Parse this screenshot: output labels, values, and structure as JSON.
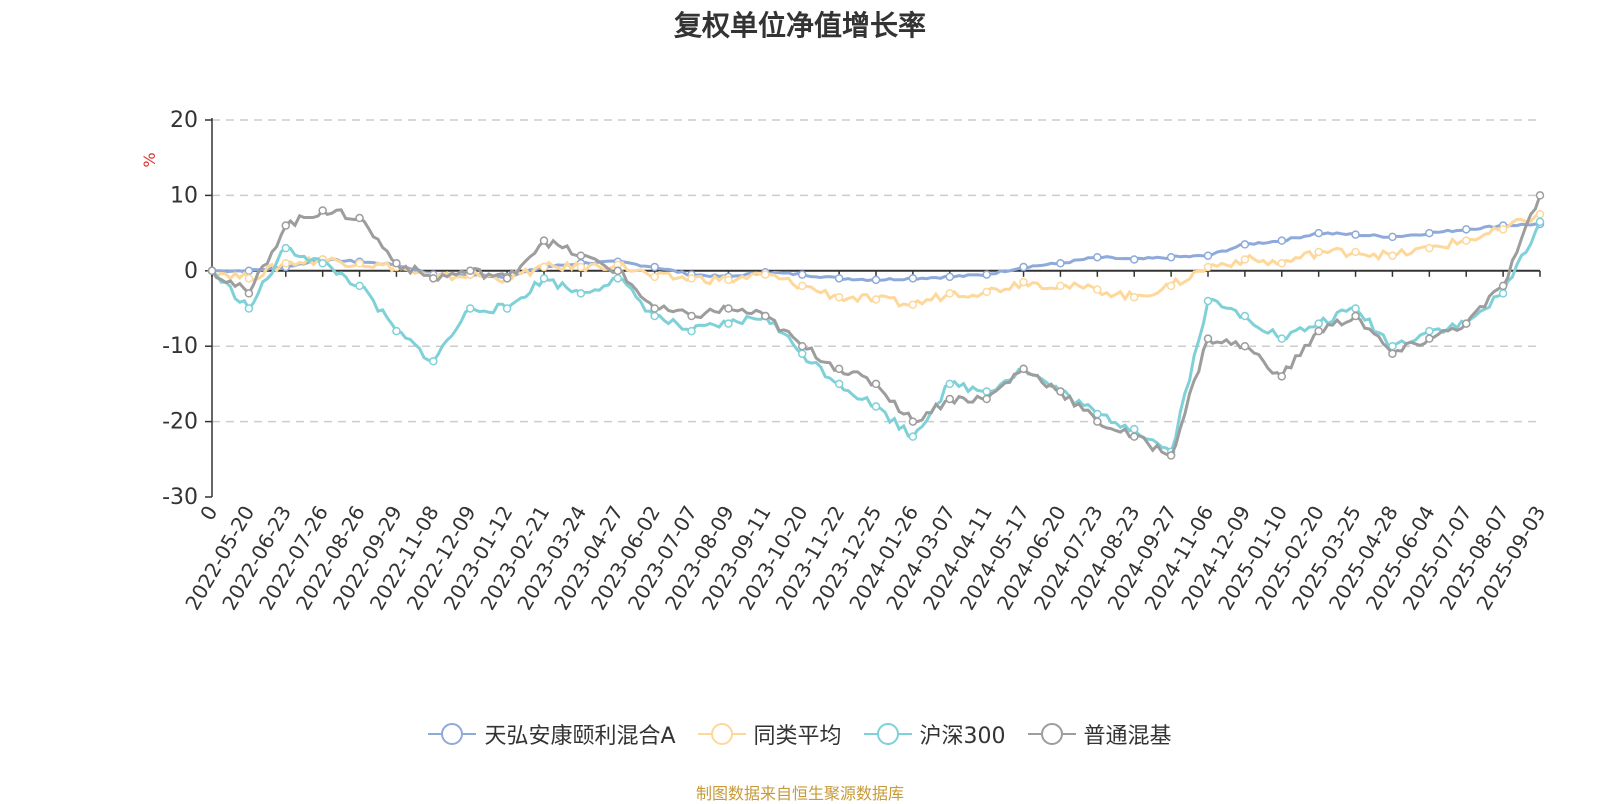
{
  "page": {
    "title": "复权单位净值增长率",
    "source_note": "制图数据来自恒生聚源数据库"
  },
  "chart_data": {
    "type": "line",
    "title": "复权单位净值增长率",
    "ylabel": "%",
    "ylabel_color": "#e03030",
    "ylim": [
      -30,
      20
    ],
    "yticks": [
      20,
      10,
      0,
      -10,
      -20,
      -30
    ],
    "xlabels": [
      "0",
      "2022-05-20",
      "2022-06-23",
      "2022-07-26",
      "2022-08-26",
      "2022-09-29",
      "2022-11-08",
      "2022-12-09",
      "2023-01-12",
      "2023-02-21",
      "2023-03-24",
      "2023-04-27",
      "2023-06-02",
      "2023-07-07",
      "2023-08-09",
      "2023-09-11",
      "2023-10-20",
      "2023-11-22",
      "2023-12-25",
      "2024-01-26",
      "2024-03-07",
      "2024-04-11",
      "2024-05-17",
      "2024-06-20",
      "2024-07-23",
      "2024-08-23",
      "2024-09-27",
      "2024-11-06",
      "2024-12-09",
      "2025-01-10",
      "2025-02-20",
      "2025-03-25",
      "2025-04-28",
      "2025-06-04",
      "2025-07-07",
      "2025-08-07",
      "2025-09-03"
    ],
    "grid": true,
    "legend_position": "bottom-center",
    "series": [
      {
        "name": "天弘安康颐利混合A",
        "color": "#8eaadb",
        "values": [
          0,
          0,
          0.5,
          1.5,
          1.2,
          0.8,
          -0.5,
          -0.5,
          -0.8,
          0.5,
          1.0,
          1.2,
          0.5,
          -0.5,
          -0.8,
          -0.2,
          -0.5,
          -1.0,
          -1.2,
          -1.0,
          -0.8,
          -0.5,
          0.5,
          1.0,
          1.8,
          1.5,
          1.8,
          2.0,
          3.5,
          4.0,
          5.0,
          4.8,
          4.5,
          5.0,
          5.5,
          6.0,
          6.2
        ]
      },
      {
        "name": "同类平均",
        "color": "#fdd89a",
        "values": [
          0,
          -1.0,
          1.0,
          1.5,
          1.0,
          0.5,
          -1.0,
          -0.5,
          -1.0,
          0.5,
          0.5,
          0.8,
          -0.8,
          -1.0,
          -1.2,
          -0.5,
          -2.0,
          -3.5,
          -3.8,
          -4.5,
          -3.0,
          -2.8,
          -1.5,
          -2.0,
          -2.5,
          -3.5,
          -2.0,
          0.5,
          1.5,
          1.0,
          2.5,
          2.5,
          2.0,
          3.0,
          4.0,
          5.5,
          7.5
        ]
      },
      {
        "name": "沪深300",
        "color": "#7fd1d8",
        "values": [
          0,
          -5.0,
          3.0,
          1.0,
          -2.0,
          -8.0,
          -12.0,
          -5.0,
          -5.0,
          -1.0,
          -3.0,
          -1.0,
          -6.0,
          -8.0,
          -7.0,
          -6.0,
          -11.0,
          -15.0,
          -18.0,
          -22.0,
          -15.0,
          -16.0,
          -13.0,
          -16.0,
          -19.0,
          -21.0,
          -24.0,
          -4.0,
          -6.0,
          -9.0,
          -7.0,
          -5.0,
          -10.0,
          -8.0,
          -7.0,
          -3.0,
          6.5
        ]
      },
      {
        "name": "普通混基",
        "color": "#9d9d9d",
        "values": [
          0,
          -3.0,
          6.0,
          8.0,
          7.0,
          1.0,
          -1.0,
          0,
          -1.0,
          4.0,
          2.0,
          0,
          -5.0,
          -6.0,
          -5.0,
          -6.0,
          -10.0,
          -13.0,
          -15.0,
          -20.0,
          -17.0,
          -17.0,
          -13.0,
          -16.0,
          -20.0,
          -22.0,
          -24.5,
          -9.0,
          -10.0,
          -14.0,
          -8.0,
          -6.0,
          -11.0,
          -9.0,
          -7.0,
          -2.0,
          10.0
        ]
      }
    ]
  }
}
